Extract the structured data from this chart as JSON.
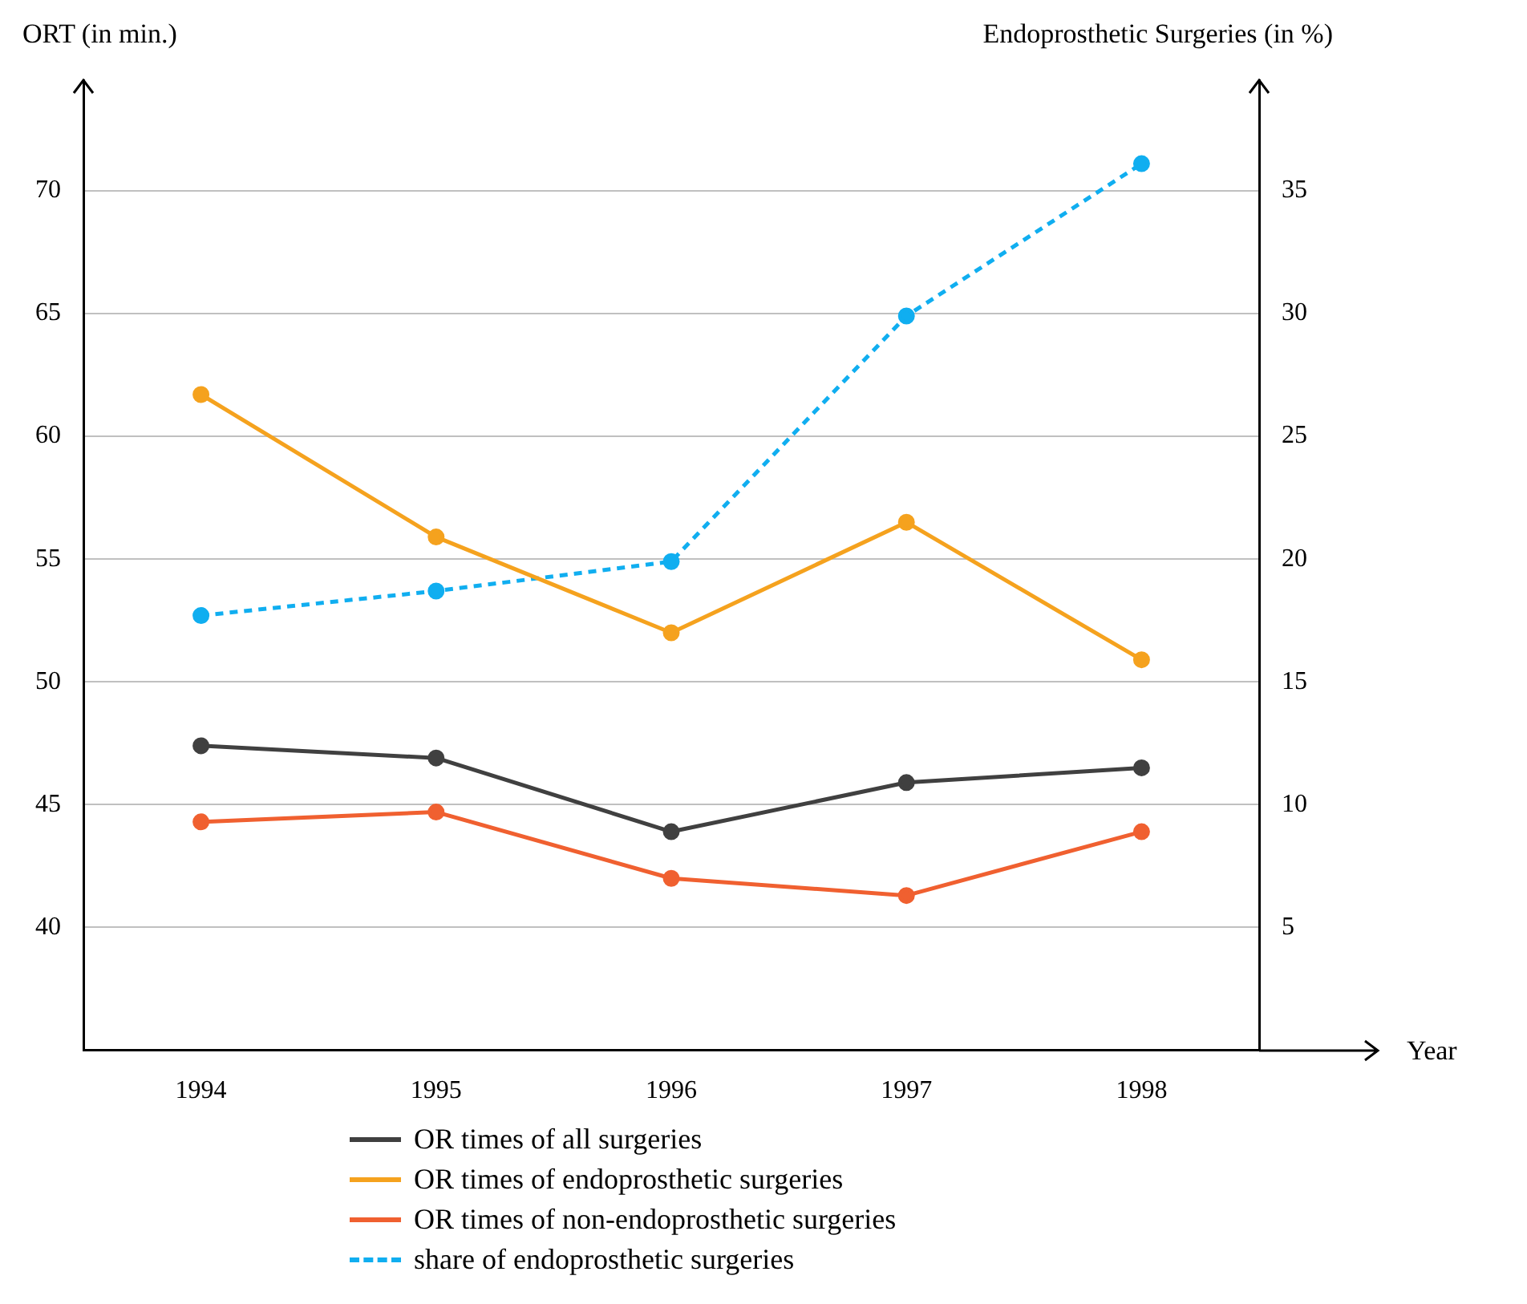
{
  "chart_data": {
    "type": "line",
    "xlabel": "Year",
    "ylabel": "ORT (in min.)",
    "y2label": "Endoprosthetic Surgeries (in %)",
    "categories": [
      "1994",
      "1995",
      "1996",
      "1997",
      "1998"
    ],
    "series": [
      {
        "name": "OR times of all surgeries",
        "color": "#404040",
        "values": [
          47.4,
          46.9,
          43.9,
          45.9,
          46.5
        ]
      },
      {
        "name": "OR times of endoprosthetic surgeries",
        "color": "#f5a21e",
        "values": [
          61.7,
          55.9,
          52.0,
          56.5,
          50.9
        ]
      },
      {
        "name": "OR times of non-endoprosthetic surgeries",
        "color": "#f06030",
        "values": [
          44.3,
          44.7,
          42.0,
          41.3,
          43.9
        ]
      },
      {
        "name": "share of endoprosthetic surgeries",
        "color": "#10aef0",
        "values": [
          17.7,
          18.7,
          19.9,
          29.9,
          36.1
        ],
        "axis": "y2",
        "line_style": "dashed"
      }
    ],
    "ylim": [
      35,
      74.5
    ],
    "yticks": [
      40,
      45,
      50,
      55,
      60,
      65,
      70
    ],
    "y2lim": [
      0,
      39.5
    ],
    "y2ticks": [
      5,
      10,
      15,
      20,
      25,
      30,
      35
    ],
    "grid": "y",
    "legend": "bottom",
    "marker": "circle",
    "line_style": "solid"
  }
}
